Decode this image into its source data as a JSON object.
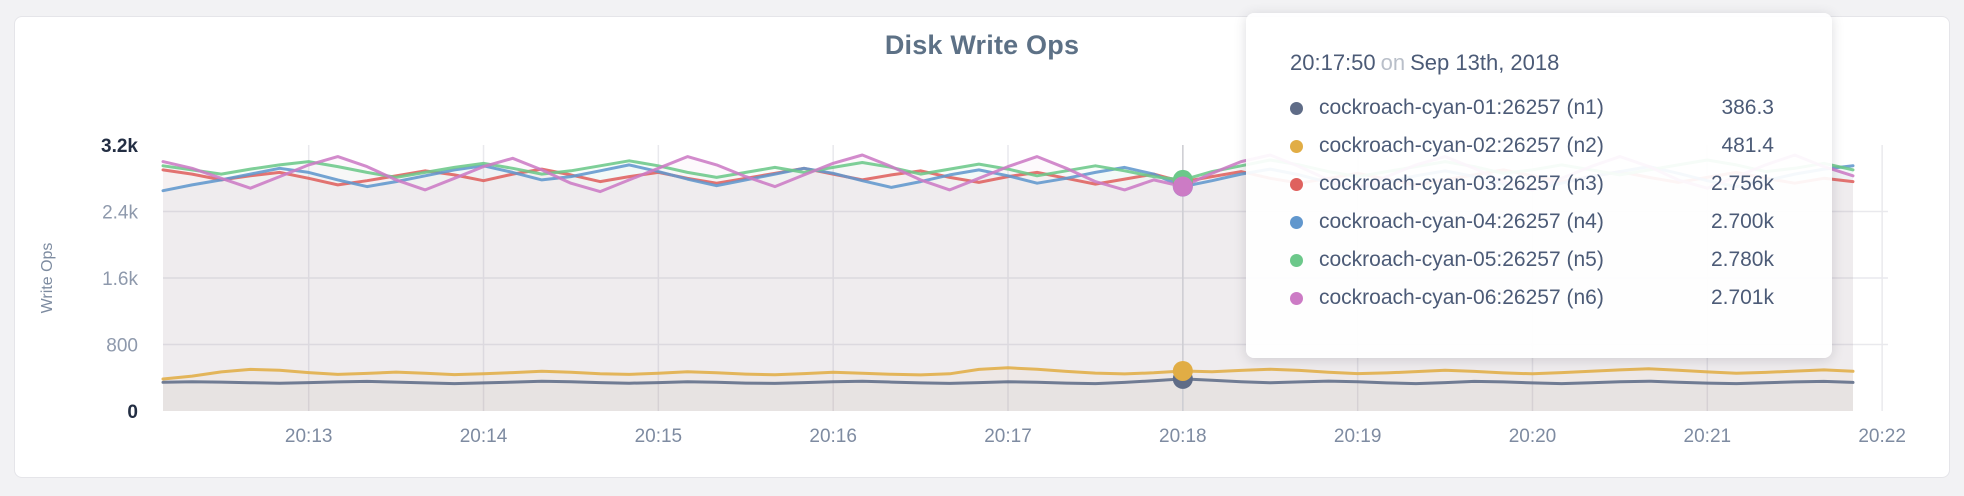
{
  "chart_data": {
    "type": "line",
    "title": "Disk Write Ops",
    "ylabel": "Write Ops",
    "legend": "none",
    "grid": true,
    "x_start": "20:12:10",
    "x_step_seconds": 10,
    "x_tick_labels": [
      "20:13",
      "20:14",
      "20:15",
      "20:16",
      "20:17",
      "20:18",
      "20:19",
      "20:20",
      "20:21",
      "20:22"
    ],
    "y_range": [
      0,
      3200
    ],
    "y_ticks": [
      {
        "label": "0",
        "value": 0,
        "emph": true
      },
      {
        "label": "800",
        "value": 800,
        "emph": false
      },
      {
        "label": "1.6k",
        "value": 1600,
        "emph": false
      },
      {
        "label": "2.4k",
        "value": 2400,
        "emph": false
      },
      {
        "label": "3.2k",
        "value": 3200,
        "emph": true
      }
    ],
    "hover": {
      "index": 35,
      "time": "20:17:50",
      "on_word": "on",
      "date": "Sep 13th, 2018"
    },
    "series": [
      {
        "name": "cockroach-cyan-01:26257 (n1)",
        "color": "#5f6c87",
        "hover_display": "386.3",
        "values": [
          345,
          352,
          348,
          340,
          335,
          342,
          350,
          356,
          348,
          338,
          330,
          338,
          348,
          358,
          352,
          342,
          334,
          342,
          352,
          346,
          336,
          332,
          342,
          352,
          358,
          348,
          338,
          332,
          342,
          352,
          346,
          336,
          330,
          344,
          365,
          386.3,
          370,
          352,
          340,
          350,
          360,
          352,
          338,
          330,
          342,
          356,
          350,
          338,
          330,
          340,
          352,
          358,
          346,
          336,
          330,
          340,
          350,
          356,
          344
        ]
      },
      {
        "name": "cockroach-cyan-02:26257 (n2)",
        "color": "#e1ad45",
        "hover_display": "481.4",
        "values": [
          385,
          420,
          470,
          500,
          490,
          462,
          440,
          452,
          468,
          455,
          438,
          448,
          462,
          478,
          465,
          448,
          440,
          455,
          472,
          460,
          444,
          436,
          450,
          466,
          455,
          442,
          434,
          448,
          500,
          520,
          502,
          476,
          456,
          446,
          460,
          481.4,
          472,
          488,
          502,
          488,
          466,
          450,
          458,
          474,
          490,
          476,
          458,
          448,
          462,
          478,
          494,
          508,
          490,
          470,
          454,
          464,
          480,
          494,
          478
        ]
      },
      {
        "name": "cockroach-cyan-03:26257 (n3)",
        "color": "#df615e",
        "hover_display": "2.756k",
        "values": [
          2900,
          2850,
          2780,
          2830,
          2870,
          2800,
          2720,
          2770,
          2830,
          2890,
          2840,
          2770,
          2850,
          2910,
          2840,
          2760,
          2820,
          2870,
          2800,
          2740,
          2800,
          2860,
          2920,
          2850,
          2780,
          2840,
          2890,
          2810,
          2750,
          2820,
          2870,
          2800,
          2730,
          2790,
          2850,
          2756,
          2820,
          2880,
          2800,
          2740,
          2800,
          2860,
          2790,
          2720,
          2780,
          2840,
          2900,
          2830,
          2760,
          2820,
          2880,
          2810,
          2750,
          2810,
          2870,
          2800,
          2740,
          2800,
          2760
        ]
      },
      {
        "name": "cockroach-cyan-04:26257 (n4)",
        "color": "#6197cd",
        "hover_display": "2.700k",
        "values": [
          2650,
          2720,
          2780,
          2850,
          2920,
          2870,
          2780,
          2700,
          2760,
          2830,
          2900,
          2950,
          2870,
          2780,
          2820,
          2890,
          2960,
          2880,
          2790,
          2710,
          2780,
          2850,
          2920,
          2860,
          2770,
          2690,
          2760,
          2840,
          2900,
          2830,
          2740,
          2800,
          2870,
          2930,
          2850,
          2700,
          2770,
          2850,
          2910,
          2840,
          2750,
          2680,
          2750,
          2830,
          2890,
          2820,
          2730,
          2660,
          2740,
          2820,
          2880,
          2940,
          2860,
          2770,
          2700,
          2770,
          2850,
          2910,
          2950
        ]
      },
      {
        "name": "cockroach-cyan-05:26257 (n5)",
        "color": "#6cc88a",
        "hover_display": "2.780k",
        "values": [
          2950,
          2900,
          2850,
          2910,
          2960,
          3000,
          2940,
          2870,
          2810,
          2870,
          2930,
          2980,
          2920,
          2850,
          2890,
          2950,
          3010,
          2950,
          2870,
          2810,
          2870,
          2930,
          2870,
          2930,
          2990,
          2930,
          2850,
          2910,
          2970,
          2910,
          2830,
          2890,
          2950,
          2890,
          2820,
          2780,
          2880,
          2950,
          3020,
          2960,
          2880,
          2820,
          2880,
          2940,
          3000,
          2940,
          2860,
          2900,
          2960,
          2900,
          2840,
          2900,
          2960,
          3020,
          2960,
          2880,
          2920,
          2980,
          2900
        ]
      },
      {
        "name": "cockroach-cyan-06:26257 (n6)",
        "color": "#cc7bc5",
        "hover_display": "2.701k",
        "values": [
          3000,
          2920,
          2800,
          2680,
          2820,
          2960,
          3060,
          2940,
          2780,
          2660,
          2800,
          2940,
          3040,
          2900,
          2740,
          2640,
          2780,
          2920,
          3060,
          2960,
          2820,
          2700,
          2840,
          2980,
          3080,
          2940,
          2780,
          2660,
          2800,
          2940,
          3060,
          2920,
          2760,
          2660,
          2780,
          2701,
          2860,
          3000,
          3080,
          2940,
          2780,
          2680,
          2820,
          2960,
          3060,
          2920,
          2760,
          2660,
          2800,
          2940,
          3060,
          2940,
          2780,
          2680,
          2820,
          2960,
          3080,
          2940,
          2830
        ]
      }
    ]
  }
}
